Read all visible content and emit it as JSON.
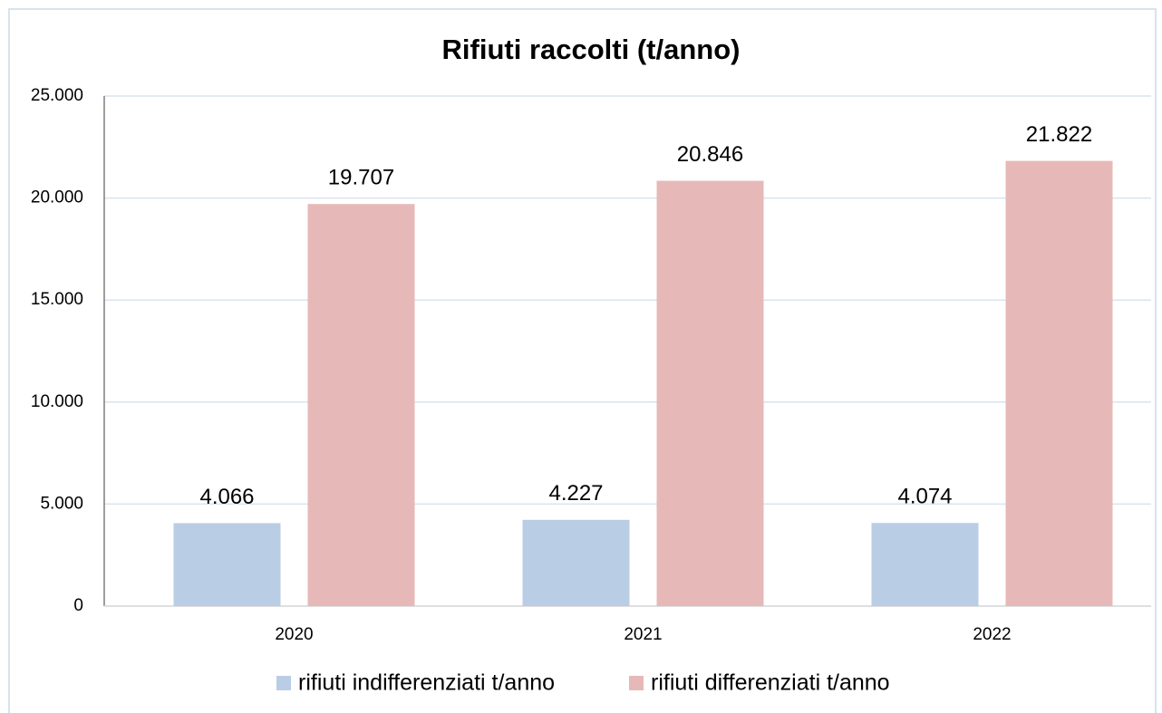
{
  "chart_data": {
    "type": "bar",
    "title": "Rifiuti raccolti (t/anno)",
    "categories": [
      "2020",
      "2021",
      "2022"
    ],
    "series": [
      {
        "name": "rifiuti indifferenziati t/anno",
        "color": "#b9cde5",
        "values": [
          4066,
          4227,
          4074
        ],
        "value_labels": [
          "4.066",
          "4.227",
          "4.074"
        ]
      },
      {
        "name": "rifiuti differenziati t/anno",
        "color": "#e6b9b8",
        "values": [
          19707,
          20846,
          21822
        ],
        "value_labels": [
          "19.707",
          "20.846",
          "21.822"
        ]
      }
    ],
    "ylim": [
      0,
      25000
    ],
    "yticks": [
      0,
      {
        "value": 5000,
        "label": "5.000"
      },
      {
        "value": 10000,
        "label": "10.000"
      },
      {
        "value": 15000,
        "label": "15.000"
      },
      {
        "value": 20000,
        "label": "20.000"
      },
      {
        "value": 25000,
        "label": "25.000"
      }
    ],
    "grid": true,
    "legend": "bottom"
  }
}
